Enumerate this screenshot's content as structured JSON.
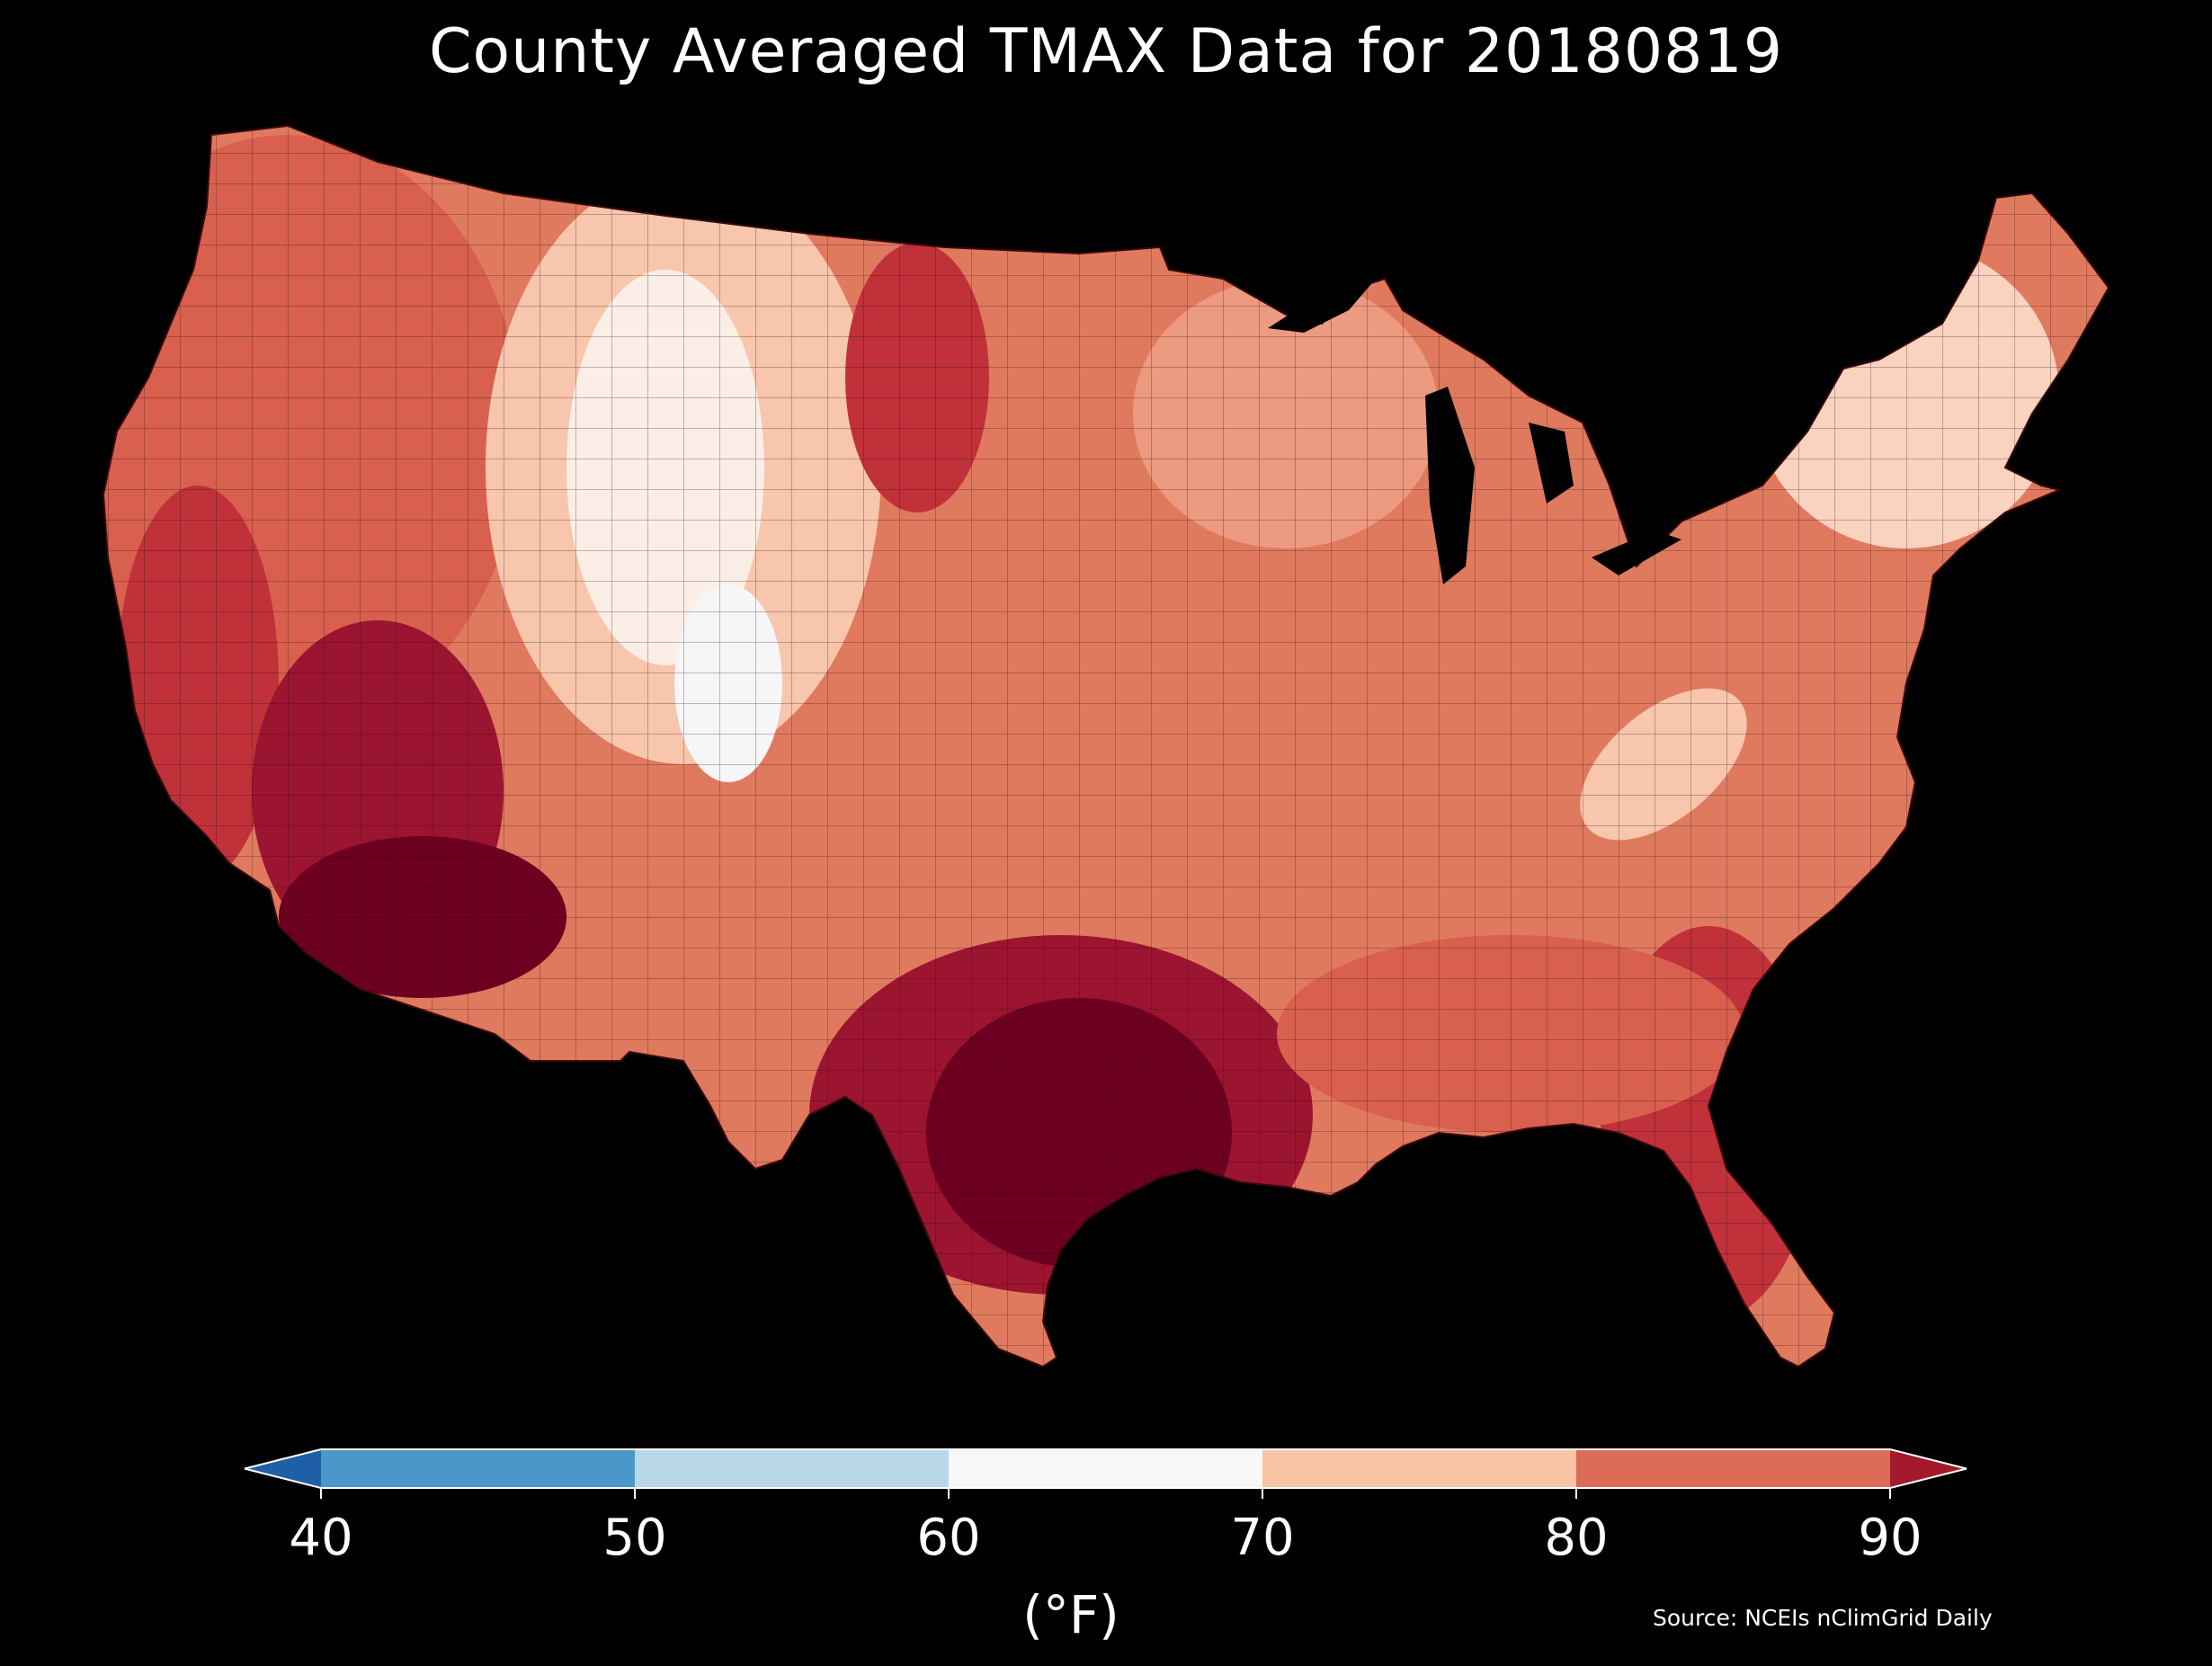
{
  "title": "County Averaged TMAX Data for 20180819",
  "source": "Source: NCEIs nClimGrid Daily",
  "colorbar": {
    "label": "(°F)",
    "ticks": [
      "40",
      "50",
      "60",
      "70",
      "80",
      "90"
    ],
    "bins": [
      {
        "min": 40,
        "max": 50,
        "color": "#4a97c9"
      },
      {
        "min": 50,
        "max": 60,
        "color": "#b8d8ea"
      },
      {
        "min": 60,
        "max": 70,
        "color": "#f7f7f7"
      },
      {
        "min": 70,
        "max": 80,
        "color": "#f9c3a6"
      },
      {
        "min": 80,
        "max": 90,
        "color": "#dc6b58"
      }
    ],
    "under_color": "#1f5fa5",
    "over_color": "#a31a2b"
  },
  "map_colors": {
    "very_cool": "#fbeee6",
    "cool": "#f7c6ad",
    "mild": "#ec9a80",
    "warm": "#d9604e",
    "hot": "#c0313a",
    "very_hot": "#9b1430",
    "extreme": "#6d0020"
  }
}
